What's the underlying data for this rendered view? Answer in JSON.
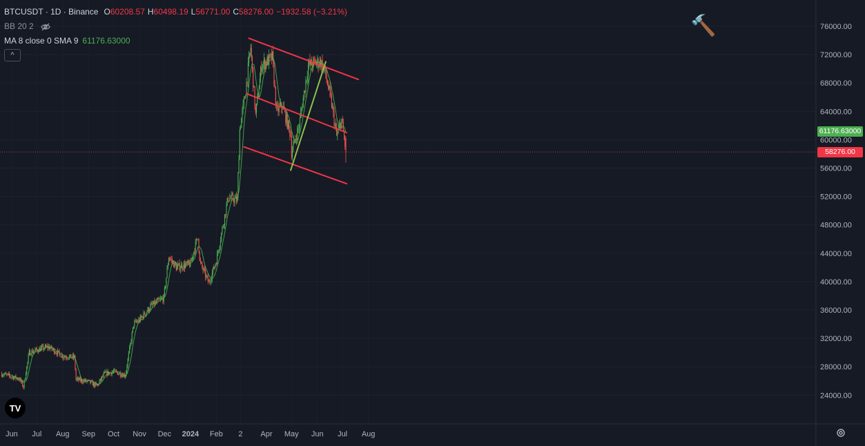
{
  "legend": {
    "symbol": "BTCUSDT · 1D · Binance",
    "o_label": "O",
    "o": "60208.57",
    "h_label": "H",
    "h": "60498.19",
    "l_label": "L",
    "l": "56771.00",
    "c_label": "C",
    "c": "58276.00",
    "change": "−1932.58 (−3.21%)",
    "bb": "BB 20 2",
    "ma": "MA 8 close 0 SMA 9",
    "ma_value": "61176.63000",
    "collapse": "^"
  },
  "price_tags": {
    "ma": "61176.63000",
    "last": "58276.00"
  },
  "colors": {
    "background": "#161a25",
    "up": "#26a69a",
    "up_fill": "#4caf50",
    "down": "#ef5350",
    "ma": "#4caf50",
    "channel": "#f23645",
    "trendline": "#8bc34a",
    "ma_tag": "#4caf50",
    "last_tag": "#f23645"
  },
  "logo": "TV",
  "icons": [
    "hammer-icon",
    "eye-off-icon",
    "settings-icon"
  ],
  "chart_data": {
    "type": "candlestick",
    "symbol": "BTCUSDT",
    "interval": "1D",
    "exchange": "Binance",
    "ylim": [
      20000,
      80000
    ],
    "y_ticks": [
      "76000.00",
      "72000.00",
      "68000.00",
      "64000.00",
      "60000.00",
      "56000.00",
      "52000.00",
      "48000.00",
      "44000.00",
      "40000.00",
      "36000.00",
      "32000.00",
      "28000.00",
      "24000.00"
    ],
    "x_ticks": [
      "Jun",
      "Jul",
      "Aug",
      "Sep",
      "Oct",
      "Nov",
      "Dec",
      "2024",
      "Feb",
      "2",
      "Apr",
      "May",
      "Jun",
      "Jul",
      "Aug"
    ],
    "anchors": [
      [
        "2023-05-20",
        27000
      ],
      [
        "2023-06-10",
        26300
      ],
      [
        "2023-06-15",
        25200
      ],
      [
        "2023-06-22",
        30000
      ],
      [
        "2023-07-05",
        30500
      ],
      [
        "2023-07-15",
        30800
      ],
      [
        "2023-08-01",
        29500
      ],
      [
        "2023-08-15",
        29300
      ],
      [
        "2023-08-17",
        26200
      ],
      [
        "2023-09-01",
        25900
      ],
      [
        "2023-09-11",
        25300
      ],
      [
        "2023-09-20",
        27000
      ],
      [
        "2023-10-01",
        27300
      ],
      [
        "2023-10-15",
        26800
      ],
      [
        "2023-10-25",
        34000
      ],
      [
        "2023-11-01",
        34600
      ],
      [
        "2023-11-15",
        36600
      ],
      [
        "2023-11-30",
        37700
      ],
      [
        "2023-12-06",
        43500
      ],
      [
        "2023-12-15",
        42000
      ],
      [
        "2024-01-01",
        42500
      ],
      [
        "2024-01-10",
        46500
      ],
      [
        "2024-01-12",
        42800
      ],
      [
        "2024-01-23",
        39800
      ],
      [
        "2024-02-01",
        43000
      ],
      [
        "2024-02-15",
        51800
      ],
      [
        "2024-02-26",
        51500
      ],
      [
        "2024-02-29",
        61500
      ],
      [
        "2024-03-06",
        66000
      ],
      [
        "2024-03-13",
        73000
      ],
      [
        "2024-03-19",
        63500
      ],
      [
        "2024-03-26",
        70500
      ],
      [
        "2024-04-08",
        71600
      ],
      [
        "2024-04-13",
        64000
      ],
      [
        "2024-04-20",
        64800
      ],
      [
        "2024-04-30",
        60700
      ],
      [
        "2024-05-01",
        58200
      ],
      [
        "2024-05-10",
        62000
      ],
      [
        "2024-05-21",
        70500
      ],
      [
        "2024-06-05",
        71000
      ],
      [
        "2024-06-10",
        69600
      ],
      [
        "2024-06-18",
        65000
      ],
      [
        "2024-06-24",
        60500
      ],
      [
        "2024-06-30",
        62800
      ],
      [
        "2024-07-05",
        58276
      ]
    ],
    "last_candle": {
      "date": "2024-07-05",
      "open": 60208.57,
      "high": 60498.19,
      "low": 56771.0,
      "close": 58276.0
    },
    "ma": {
      "type": "SMA",
      "length": 8,
      "value": 61176.63
    },
    "drawings": [
      {
        "name": "channel-top",
        "color": "#f23645",
        "points": [
          [
            "2024-03-11",
            74300
          ],
          [
            "2024-07-20",
            68500
          ]
        ]
      },
      {
        "name": "channel-middle",
        "color": "#f23645",
        "points": [
          [
            "2024-03-08",
            66500
          ],
          [
            "2024-07-06",
            61000
          ]
        ]
      },
      {
        "name": "channel-bottom",
        "color": "#f23645",
        "points": [
          [
            "2024-03-05",
            59000
          ],
          [
            "2024-07-06",
            53800
          ]
        ]
      },
      {
        "name": "rising-trendline",
        "color": "#8bc34a",
        "points": [
          [
            "2024-04-30",
            55700
          ],
          [
            "2024-06-11",
            71000
          ]
        ]
      }
    ]
  }
}
